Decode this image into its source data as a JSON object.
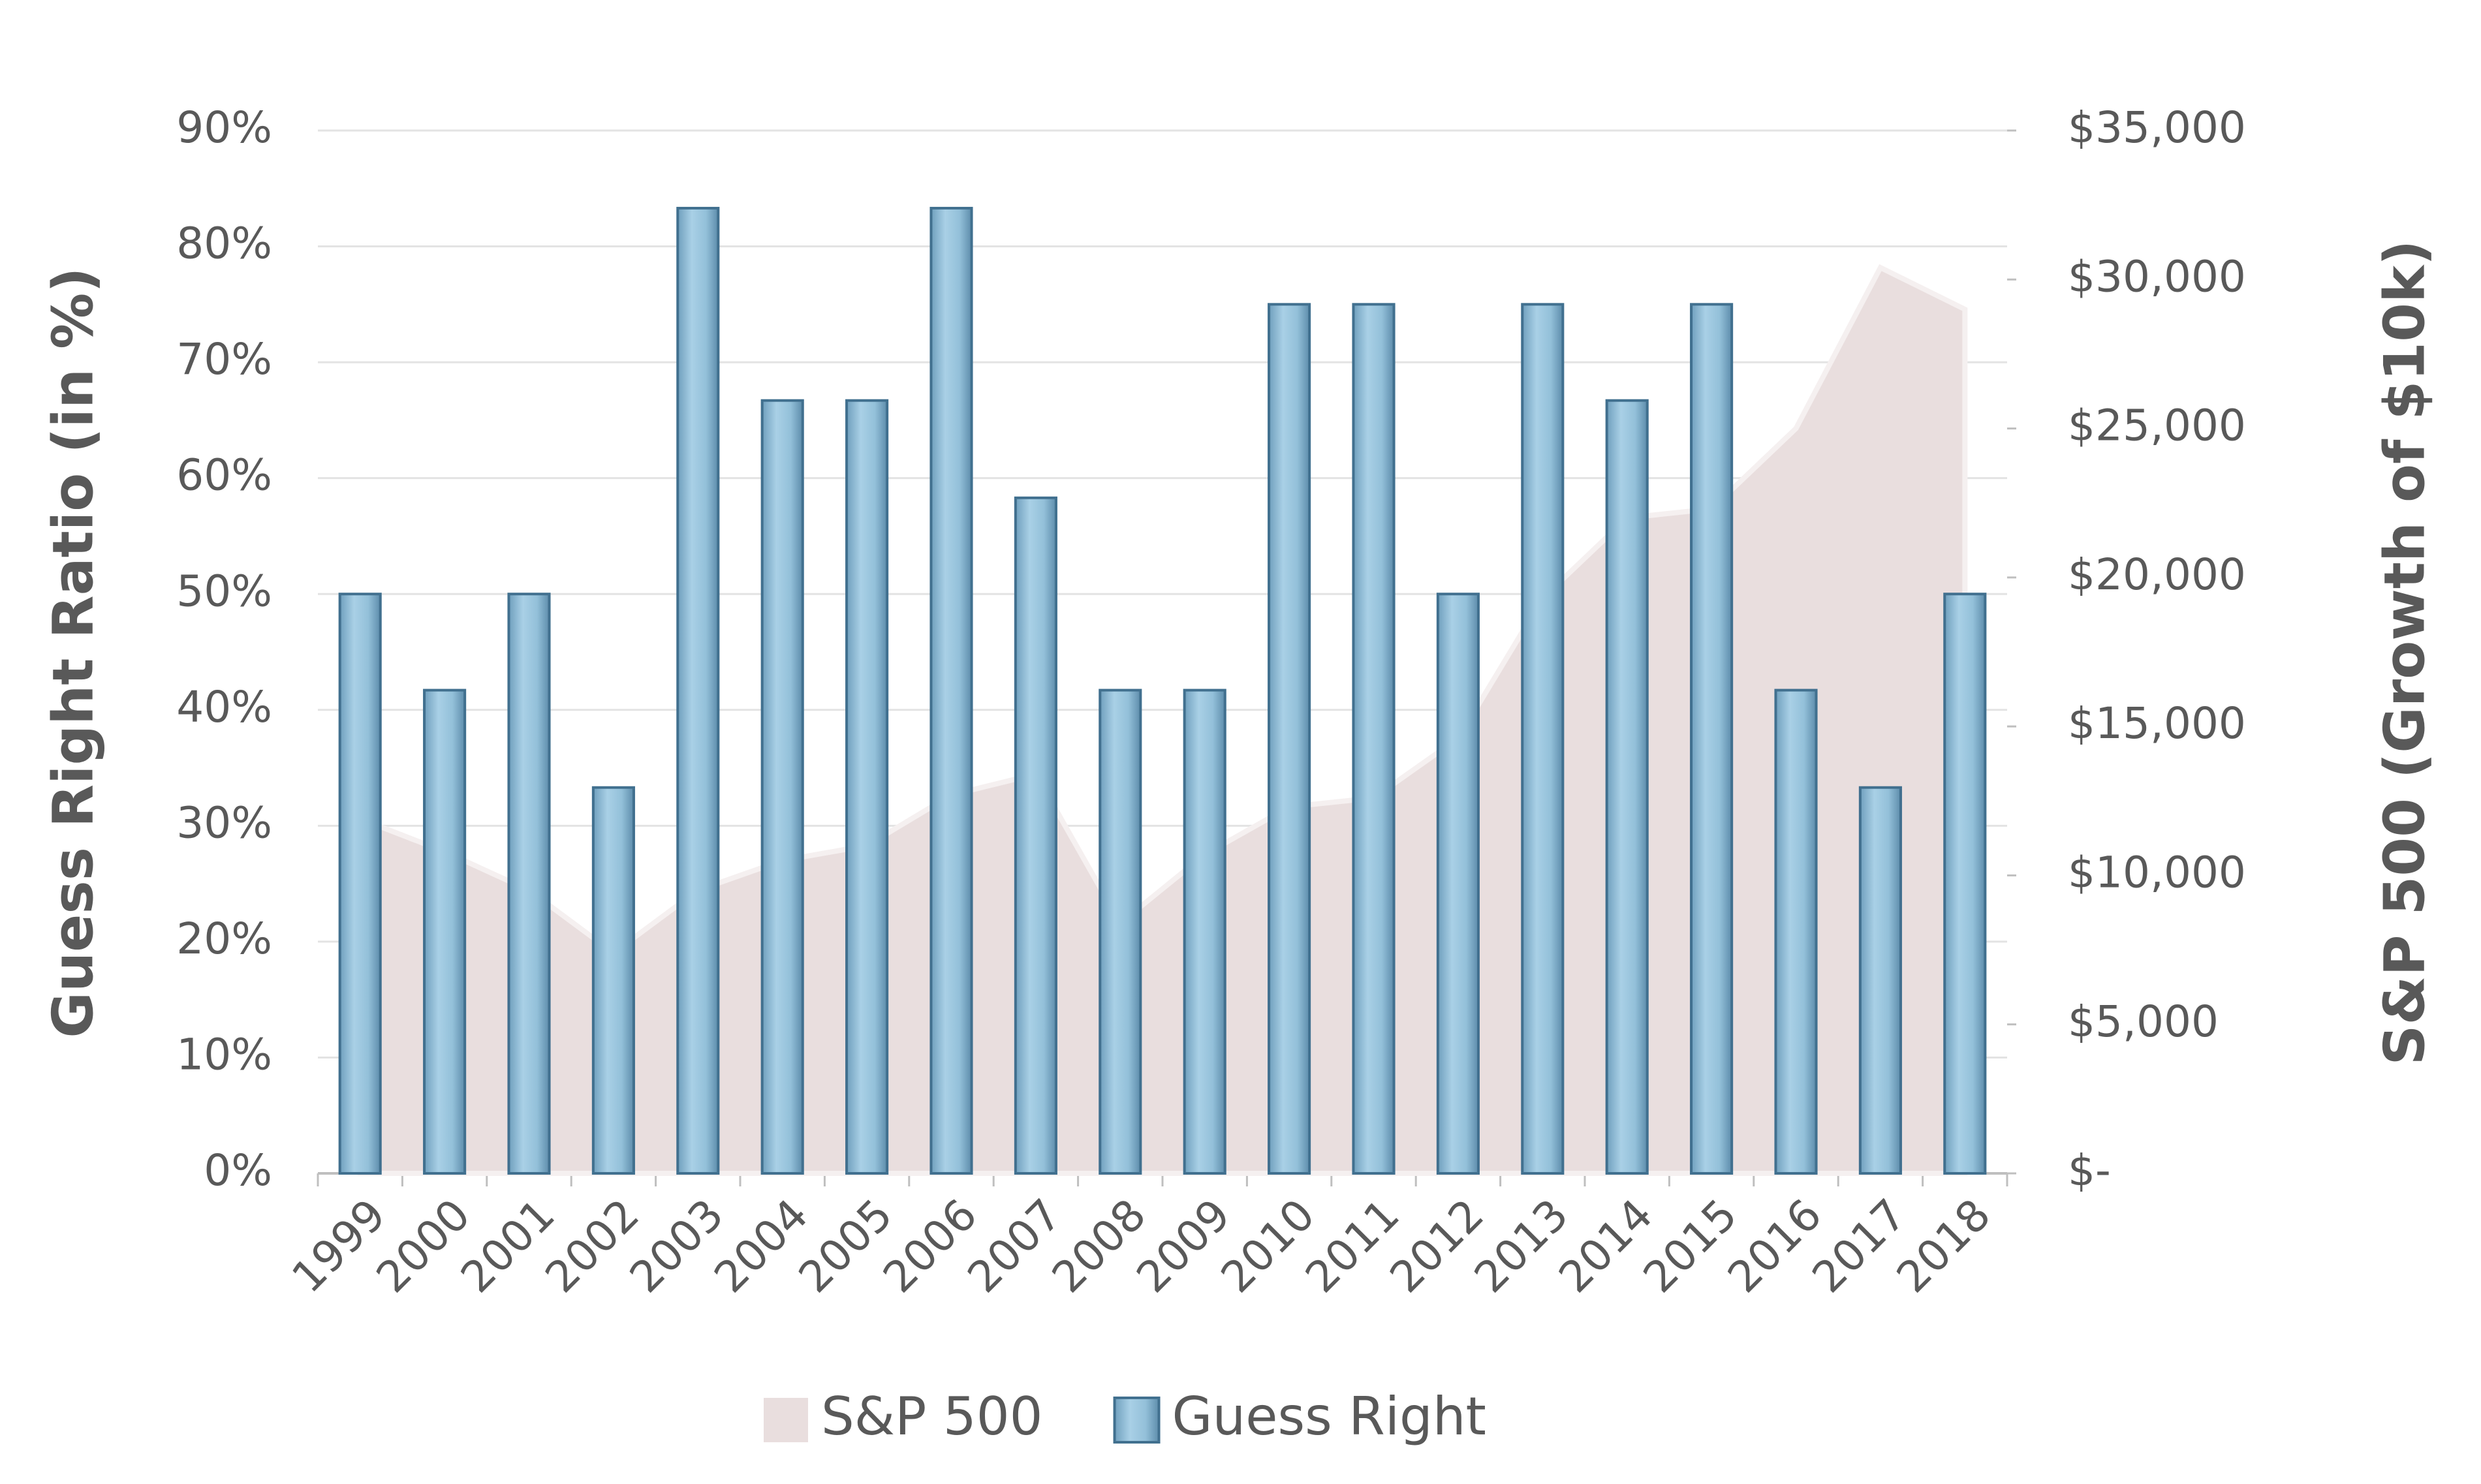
{
  "chart_data": {
    "type": "bar",
    "categories": [
      "1999",
      "2000",
      "2001",
      "2002",
      "2003",
      "2004",
      "2005",
      "2006",
      "2007",
      "2008",
      "2009",
      "2010",
      "2011",
      "2012",
      "2013",
      "2014",
      "2015",
      "2016",
      "2017",
      "2018"
    ],
    "series": [
      {
        "name": "S&P 500",
        "type": "area",
        "axis": "y2",
        "color": "#e9dede",
        "values": [
          11900,
          10800,
          9500,
          7400,
          9500,
          10500,
          11000,
          12700,
          13400,
          8400,
          10700,
          12300,
          12600,
          14600,
          19300,
          22000,
          22300,
          25000,
          30400,
          29000
        ]
      },
      {
        "name": "Guess Right",
        "type": "bar",
        "axis": "y",
        "color": "#93c0d9",
        "values": [
          50,
          41.7,
          50,
          33.3,
          83.3,
          66.7,
          66.7,
          83.3,
          58.3,
          41.7,
          41.7,
          75,
          75,
          50,
          75,
          66.7,
          75,
          41.7,
          33.3,
          50
        ]
      }
    ],
    "y_label": "Guess Right Ratio (in %)",
    "y2_label": "S&P 500 (Growth of $10k)",
    "ylim": [
      0,
      90
    ],
    "yticks": [
      {
        "value": 0,
        "label": "0%"
      },
      {
        "value": 10,
        "label": "10%"
      },
      {
        "value": 20,
        "label": "20%"
      },
      {
        "value": 30,
        "label": "30%"
      },
      {
        "value": 40,
        "label": "40%"
      },
      {
        "value": 50,
        "label": "50%"
      },
      {
        "value": 60,
        "label": "60%"
      },
      {
        "value": 70,
        "label": "70%"
      },
      {
        "value": 80,
        "label": "80%"
      },
      {
        "value": 90,
        "label": "90%"
      }
    ],
    "y2lim": [
      0,
      35000
    ],
    "y2ticks": [
      {
        "value": 0,
        "label": "$-"
      },
      {
        "value": 5000,
        "label": "$5,000"
      },
      {
        "value": 10000,
        "label": "$10,000"
      },
      {
        "value": 15000,
        "label": "$15,000"
      },
      {
        "value": 20000,
        "label": "$20,000"
      },
      {
        "value": 25000,
        "label": "$25,000"
      },
      {
        "value": 30000,
        "label": "$30,000"
      },
      {
        "value": 35000,
        "label": "$35,000"
      }
    ],
    "grid": true,
    "legend": "bottom"
  }
}
